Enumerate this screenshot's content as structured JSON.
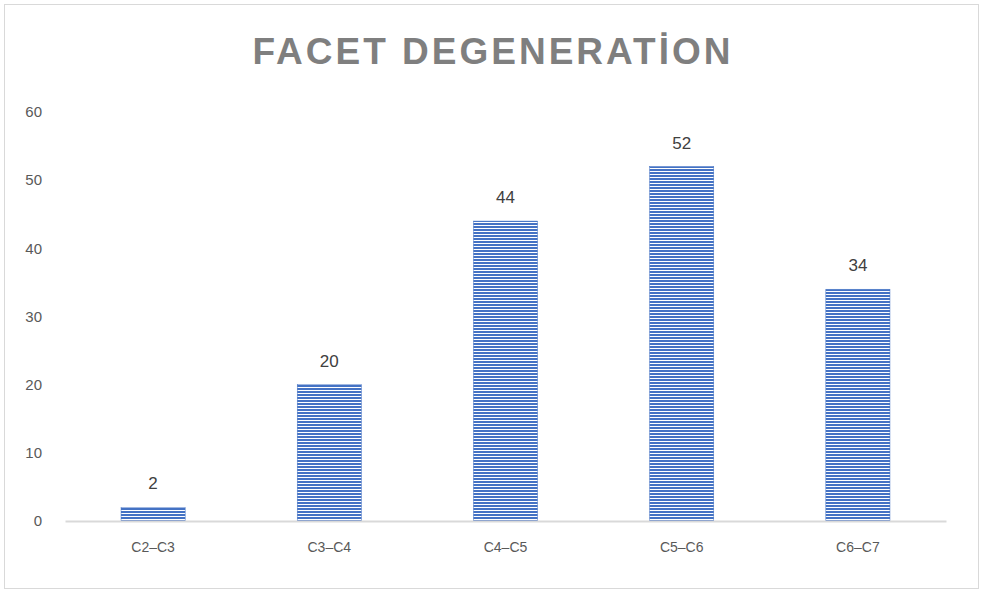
{
  "chart_data": {
    "type": "bar",
    "title": "FACET DEGENERATİON",
    "categories": [
      "C2–C3",
      "C3–C4",
      "C4–C5",
      "C5–C6",
      "C6–C7"
    ],
    "values": [
      2,
      20,
      44,
      52,
      34
    ],
    "color": "#4472c4",
    "ylim": [
      0,
      60
    ],
    "yticks": [
      0,
      10,
      20,
      30,
      40,
      50,
      60
    ],
    "grid": false,
    "data_labels": true
  }
}
